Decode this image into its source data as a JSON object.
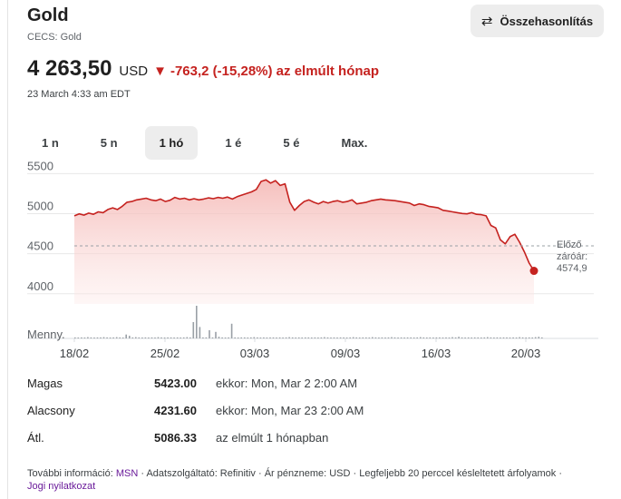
{
  "header": {
    "title": "Gold",
    "subtitle": "CECS: Gold",
    "compare_label": "Összehasonlítás",
    "compare_icon": "swap-arrows-icon"
  },
  "quote": {
    "price": "4 263,50",
    "currency": "USD",
    "change_text": "-763,2 (-15,28%) az elmúlt hónap",
    "timestamp": "23 March 4:33 am EDT",
    "down_color": "#c5221f"
  },
  "tabs": [
    {
      "label": "1 n",
      "active": false
    },
    {
      "label": "5 n",
      "active": false
    },
    {
      "label": "1 hó",
      "active": true
    },
    {
      "label": "1 é",
      "active": false
    },
    {
      "label": "5 é",
      "active": false
    },
    {
      "label": "Max.",
      "active": false
    }
  ],
  "chart_data": {
    "type": "area",
    "y_ticks": [
      "5500",
      "5000",
      "4500",
      "4000"
    ],
    "ylim": [
      3850,
      5550
    ],
    "x_ticks": [
      "18/02",
      "25/02",
      "03/03",
      "09/03",
      "16/03",
      "20/03"
    ],
    "volume_label": "Menny.",
    "previous_close_label_line1": "Előző",
    "previous_close_label_line2": "záróár:",
    "previous_close_value": "4574,9",
    "previous_close": 4574.9,
    "line_color": "#c5221f",
    "series": [
      {
        "values": [
          4950,
          4975,
          4960,
          4985,
          4970,
          5000,
          4990,
          5030,
          5050,
          5030,
          5070,
          5120,
          5130,
          5150,
          5160,
          5170,
          5150,
          5140,
          5160,
          5130,
          5145,
          5180,
          5160,
          5170,
          5150,
          5165,
          5150,
          5160,
          5175,
          5165,
          5180,
          5170,
          5185,
          5160,
          5190,
          5210,
          5230,
          5250,
          5280,
          5380,
          5400,
          5360,
          5390,
          5330,
          5350,
          5120,
          5020,
          5080,
          5130,
          5150,
          5120,
          5100,
          5130,
          5110,
          5130,
          5140,
          5120,
          5130,
          5150,
          5100,
          5110,
          5120,
          5140,
          5150,
          5160,
          5150,
          5145,
          5140,
          5130,
          5120,
          5110,
          5080,
          5100,
          5090,
          5070,
          5060,
          5050,
          5020,
          5010,
          5000,
          4990,
          4980,
          4975,
          4990,
          4970,
          4965,
          4950,
          4830,
          4800,
          4650,
          4600,
          4690,
          4720,
          4620,
          4500,
          4360,
          4263.5
        ]
      }
    ],
    "volume": [
      3,
      2,
      3,
      2,
      4,
      3,
      2,
      3,
      3,
      4,
      3,
      2,
      3,
      4,
      3,
      2,
      12,
      8,
      3,
      4,
      3,
      2,
      3,
      2,
      3,
      2,
      4,
      3,
      2,
      3,
      3,
      2,
      3,
      2,
      3,
      4,
      3,
      2,
      3,
      2,
      3,
      3,
      2,
      3,
      4,
      5,
      3,
      2,
      3,
      2,
      3,
      2,
      3,
      3,
      2,
      3,
      4,
      3,
      2,
      3,
      2,
      3,
      3,
      2,
      3,
      2,
      3,
      4,
      3,
      2,
      3,
      2,
      3,
      3,
      2,
      3,
      2,
      3,
      4,
      3,
      2,
      3,
      2,
      3,
      3,
      2,
      3,
      4,
      3,
      2,
      3,
      3,
      2,
      4,
      3,
      2,
      3,
      2,
      3,
      4,
      3,
      2,
      3,
      2,
      3,
      3,
      2,
      3,
      4,
      3,
      2,
      3,
      2,
      3,
      3,
      2,
      3,
      2,
      4,
      3,
      5,
      3,
      2,
      3,
      2,
      3,
      3,
      2,
      3,
      4,
      3,
      2,
      3,
      2,
      3,
      3,
      2,
      3,
      2,
      4,
      3,
      2,
      3,
      2,
      4,
      5,
      3
    ],
    "volume_spikes": [
      {
        "index": 37,
        "value": 50
      },
      {
        "index": 38,
        "value": 100
      },
      {
        "index": 39,
        "value": 35
      },
      {
        "index": 42,
        "value": 25
      },
      {
        "index": 44,
        "value": 20
      },
      {
        "index": 49,
        "value": 45
      }
    ]
  },
  "stats": [
    {
      "label": "Magas",
      "value": "5423.00",
      "note": "ekkor: Mon, Mar 2 2:00 AM"
    },
    {
      "label": "Alacsony",
      "value": "4231.60",
      "note": "ekkor: Mon, Mar 23 2:00 AM"
    },
    {
      "label": "Átl.",
      "value": "5086.33",
      "note": "az elmúlt 1 hónapban"
    }
  ],
  "footer": {
    "more_info": "További információ:",
    "msn_link": "MSN",
    "rest": "· Adatszolgáltató: Refinitiv · Ár pénzneme: USD · Legfeljebb 20 perccel késleltetett árfolyamok ·",
    "legal_link": "Jogi nyilatkozat"
  }
}
